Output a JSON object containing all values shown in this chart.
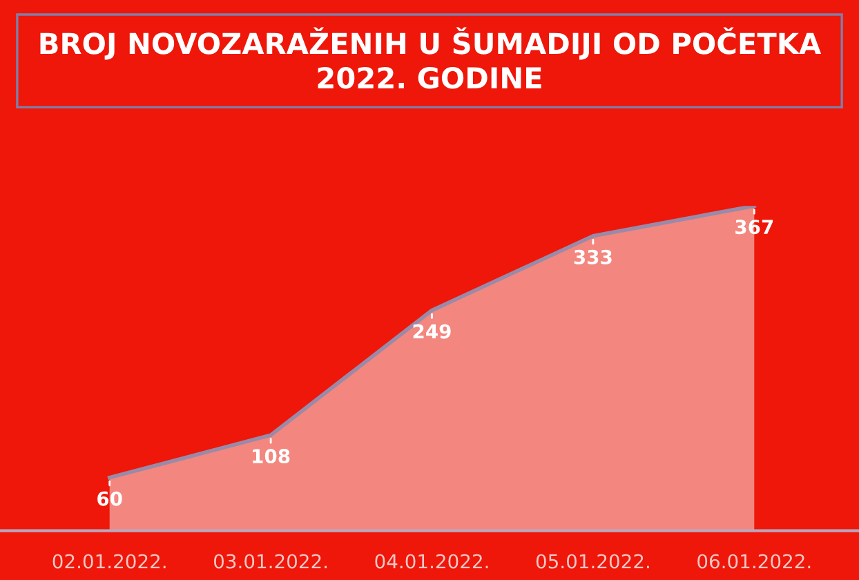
{
  "chart_data": {
    "type": "area",
    "title": "BROJ NOVOZARAŽENIH U ŠUMADIJI OD POČETKA 2022. GODINE",
    "categories": [
      "02.01.2022.",
      "03.01.2022.",
      "04.01.2022.",
      "05.01.2022.",
      "06.01.2022."
    ],
    "series": [
      {
        "color": "#f3877f",
        "values": [
          60,
          108,
          249,
          333,
          367
        ]
      }
    ],
    "data_labels": true,
    "grid": false,
    "legend": false,
    "tick_labels": "x"
  }
}
